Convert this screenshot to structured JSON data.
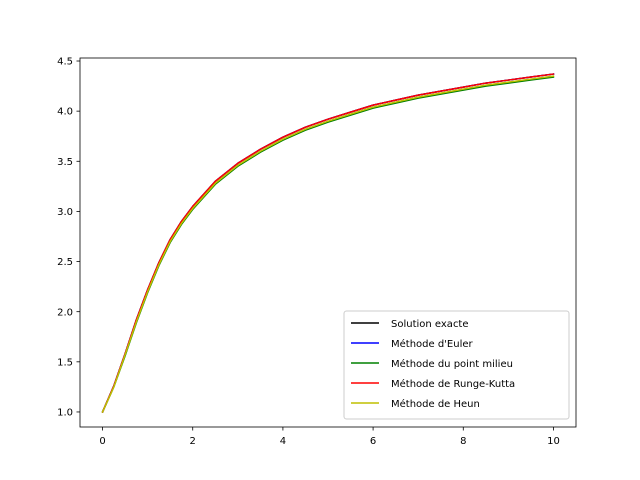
{
  "chart_data": {
    "type": "line",
    "title": "",
    "xlabel": "",
    "ylabel": "",
    "xlim": [
      -0.5,
      10.5
    ],
    "ylim": [
      0.85,
      4.53
    ],
    "xticks": [
      0,
      2,
      4,
      6,
      8,
      10
    ],
    "xtick_labels": [
      "0",
      "2",
      "4",
      "6",
      "8",
      "10"
    ],
    "yticks": [
      1.0,
      1.5,
      2.0,
      2.5,
      3.0,
      3.5,
      4.0,
      4.5
    ],
    "ytick_labels": [
      "1.0",
      "1.5",
      "2.0",
      "2.5",
      "3.0",
      "3.5",
      "4.0",
      "4.5"
    ],
    "grid": false,
    "legend_position": "lower-right",
    "x": [
      0,
      0.25,
      0.5,
      0.75,
      1,
      1.25,
      1.5,
      1.75,
      2,
      2.5,
      3,
      3.5,
      4,
      4.5,
      5,
      5.5,
      6,
      6.5,
      7,
      7.5,
      8,
      8.5,
      9,
      9.5,
      10
    ],
    "series": [
      {
        "name": "Solution exacte",
        "color": "#000000",
        "values": [
          1.0,
          1.26,
          1.58,
          1.92,
          2.22,
          2.49,
          2.72,
          2.9,
          3.05,
          3.3,
          3.48,
          3.62,
          3.74,
          3.84,
          3.92,
          3.99,
          4.06,
          4.11,
          4.16,
          4.2,
          4.24,
          4.28,
          4.31,
          4.34,
          4.37
        ]
      },
      {
        "name": "Méthode d'Euler",
        "color": "#0000ff",
        "values": [
          1.0,
          1.26,
          1.58,
          1.92,
          2.22,
          2.49,
          2.72,
          2.9,
          3.05,
          3.3,
          3.48,
          3.62,
          3.74,
          3.84,
          3.92,
          3.99,
          4.06,
          4.11,
          4.16,
          4.2,
          4.24,
          4.28,
          4.31,
          4.34,
          4.37
        ]
      },
      {
        "name": "Méthode du point milieu",
        "color": "#008000",
        "values": [
          1.0,
          1.25,
          1.56,
          1.89,
          2.19,
          2.46,
          2.69,
          2.87,
          3.02,
          3.27,
          3.45,
          3.59,
          3.71,
          3.81,
          3.89,
          3.96,
          4.03,
          4.08,
          4.13,
          4.17,
          4.21,
          4.25,
          4.28,
          4.31,
          4.34
        ]
      },
      {
        "name": "Méthode de Runge-Kutta",
        "color": "#ff0000",
        "values": [
          1.0,
          1.26,
          1.58,
          1.92,
          2.22,
          2.49,
          2.72,
          2.9,
          3.05,
          3.3,
          3.48,
          3.62,
          3.74,
          3.84,
          3.92,
          3.99,
          4.06,
          4.11,
          4.16,
          4.2,
          4.24,
          4.28,
          4.31,
          4.34,
          4.37
        ]
      },
      {
        "name": "Méthode de Heun",
        "color": "#bfbf00",
        "values": [
          1.0,
          1.25,
          1.57,
          1.9,
          2.2,
          2.47,
          2.7,
          2.88,
          3.03,
          3.28,
          3.46,
          3.6,
          3.72,
          3.82,
          3.9,
          3.97,
          4.04,
          4.09,
          4.14,
          4.18,
          4.22,
          4.26,
          4.29,
          4.32,
          4.35
        ]
      }
    ]
  }
}
